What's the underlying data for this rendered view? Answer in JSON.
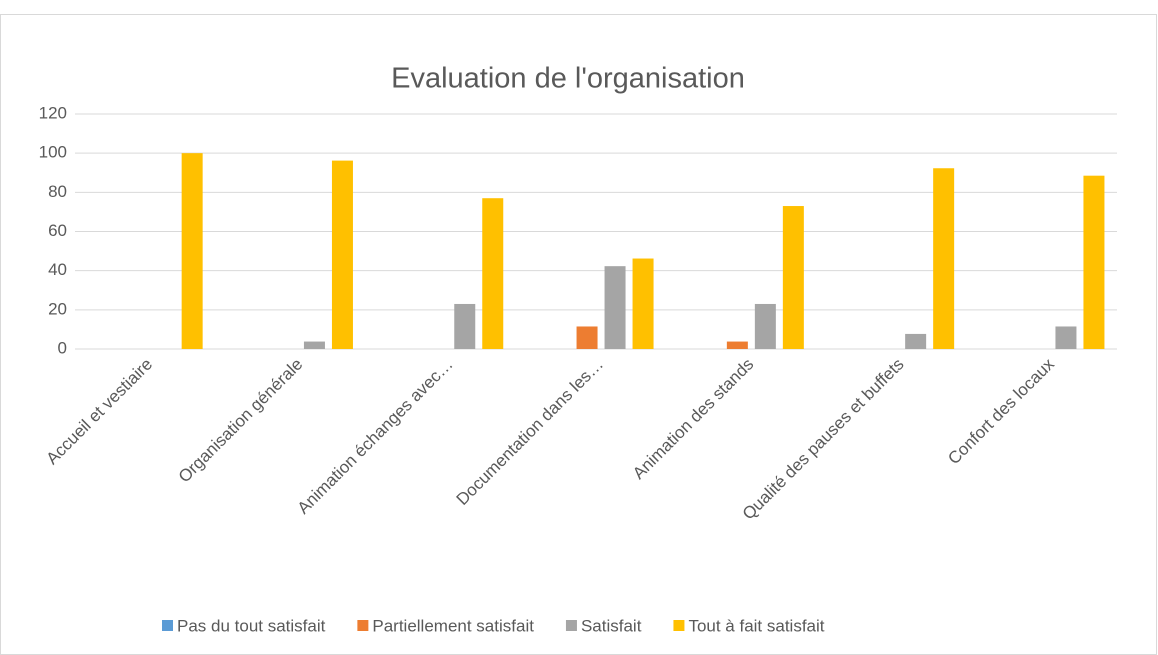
{
  "chart_data": {
    "type": "bar",
    "title": "Evaluation de l'organisation",
    "categories": [
      "Accueil et vestiaire",
      "Organisation générale",
      "Animation échanges avec…",
      "Documentation dans les…",
      "Animation des stands",
      "Qualité des pauses et buffets",
      "Confort des locaux"
    ],
    "series": [
      {
        "name": "Pas du tout satisfait",
        "color": "#5b9bd5",
        "values": [
          0,
          0,
          0,
          0,
          0,
          0,
          0
        ]
      },
      {
        "name": "Partiellement satisfait",
        "color": "#ed7d31",
        "values": [
          0,
          0,
          0,
          11.5,
          3.8,
          0,
          0
        ]
      },
      {
        "name": "Satisfait",
        "color": "#a5a5a5",
        "values": [
          0,
          3.8,
          23,
          42.3,
          23,
          7.7,
          11.5
        ]
      },
      {
        "name": "Tout à fait satisfait",
        "color": "#ffc000",
        "values": [
          100,
          96.2,
          77,
          46.2,
          73,
          92.3,
          88.5
        ]
      }
    ],
    "ylim": [
      0,
      120
    ],
    "yticks": [
      0,
      20,
      40,
      60,
      80,
      100,
      120
    ],
    "grid": true,
    "legend": "bottom"
  }
}
